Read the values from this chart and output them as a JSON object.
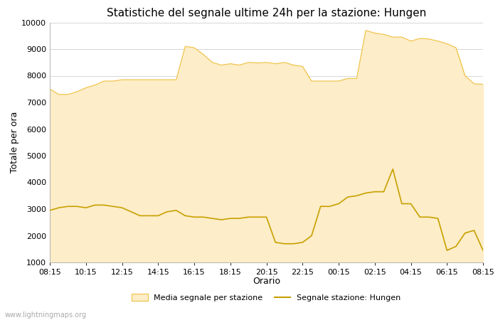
{
  "title": "Statistiche del segnale ultime 24h per la stazione: Hungen",
  "xlabel": "Orario",
  "ylabel": "Totale per ora",
  "ylim": [
    1000,
    10000
  ],
  "yticks": [
    1000,
    2000,
    3000,
    4000,
    5000,
    6000,
    7000,
    8000,
    9000,
    10000
  ],
  "xtick_labels": [
    "08:15",
    "10:15",
    "12:15",
    "14:15",
    "16:15",
    "18:15",
    "20:15",
    "22:15",
    "00:15",
    "02:15",
    "04:15",
    "06:15",
    "08:15"
  ],
  "background_color": "#ffffff",
  "plot_bg_color": "#ffffff",
  "grid_color": "#d0d0d0",
  "area_fill_color": "#fdedc8",
  "area_edge_color": "#f0c040",
  "line_color": "#c8a000",
  "title_fontsize": 11,
  "axis_label_fontsize": 9,
  "tick_fontsize": 8,
  "watermark": "www.lightningmaps.org",
  "legend_area": "Media segnale per stazione",
  "legend_line": "Segnale stazione: Hungen",
  "area_x": [
    0,
    1,
    2,
    3,
    4,
    5,
    6,
    7,
    8,
    9,
    10,
    11,
    12,
    13,
    14,
    15,
    16,
    17,
    18,
    19,
    20,
    21,
    22,
    23,
    24,
    25,
    26,
    27,
    28,
    29,
    30,
    31,
    32,
    33,
    34,
    35,
    36,
    37,
    38,
    39,
    40,
    41,
    42,
    43,
    44,
    45,
    46,
    47,
    48
  ],
  "area_y": [
    7500,
    7300,
    7300,
    7400,
    7550,
    7650,
    7800,
    7800,
    7850,
    7850,
    7850,
    7850,
    7850,
    7850,
    7850,
    9100,
    9050,
    8800,
    8500,
    8400,
    8450,
    8400,
    8500,
    8480,
    8500,
    8450,
    8500,
    8400,
    8350,
    7800,
    7800,
    7800,
    7800,
    7900,
    7900,
    9700,
    9600,
    9550,
    9450,
    9450,
    9300,
    9400,
    9380,
    9300,
    9200,
    9050,
    8000,
    7700,
    7680
  ],
  "line_x": [
    0,
    1,
    2,
    3,
    4,
    5,
    6,
    7,
    8,
    9,
    10,
    11,
    12,
    13,
    14,
    15,
    16,
    17,
    18,
    19,
    20,
    21,
    22,
    23,
    24,
    25,
    26,
    27,
    28,
    29,
    30,
    31,
    32,
    33,
    34,
    35,
    36,
    37,
    38,
    39,
    40,
    41,
    42,
    43,
    44,
    45,
    46,
    47,
    48
  ],
  "line_y": [
    2950,
    3050,
    3100,
    3100,
    3050,
    3150,
    3150,
    3100,
    3050,
    2900,
    2750,
    2750,
    2750,
    2900,
    2950,
    2750,
    2700,
    2700,
    2650,
    2600,
    2650,
    2650,
    2700,
    2700,
    2700,
    1750,
    1700,
    1700,
    1750,
    2000,
    3100,
    3100,
    3200,
    3450,
    3500,
    3600,
    3650,
    3650,
    4500,
    3200,
    3200,
    2700,
    2700,
    2650,
    1450,
    1600,
    2100,
    2200,
    1450
  ]
}
